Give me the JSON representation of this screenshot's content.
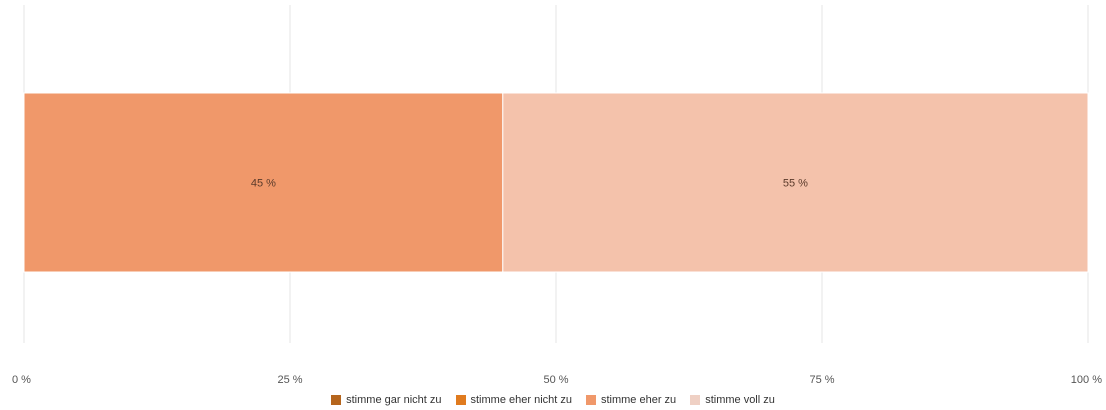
{
  "chart_data": {
    "type": "bar",
    "orientation": "horizontal",
    "stacked": true,
    "categories": [
      ""
    ],
    "series": [
      {
        "name": "stimme gar nicht zu",
        "values": [
          0
        ],
        "color": "#b5651d",
        "label": ""
      },
      {
        "name": "stimme eher nicht zu",
        "values": [
          0
        ],
        "color": "#e07b1f",
        "label": ""
      },
      {
        "name": "stimme eher zu",
        "values": [
          45
        ],
        "color": "#f0986a",
        "label": "45 %"
      },
      {
        "name": "stimme voll zu",
        "values": [
          55
        ],
        "color": "#f4c2ab",
        "label": "55 %"
      }
    ],
    "xlim": [
      0,
      100
    ],
    "xticks": [
      0,
      25,
      50,
      75,
      100
    ],
    "xtick_labels": [
      "0 %",
      "25 %",
      "50 %",
      "75 %",
      "100 %"
    ],
    "grid": true,
    "legend_position": "bottom",
    "legend_swatch_colors": [
      "#b5651d",
      "#e07b1f",
      "#f0986a",
      "#efd0c4"
    ],
    "gridline_color": "#e6e6e6"
  }
}
